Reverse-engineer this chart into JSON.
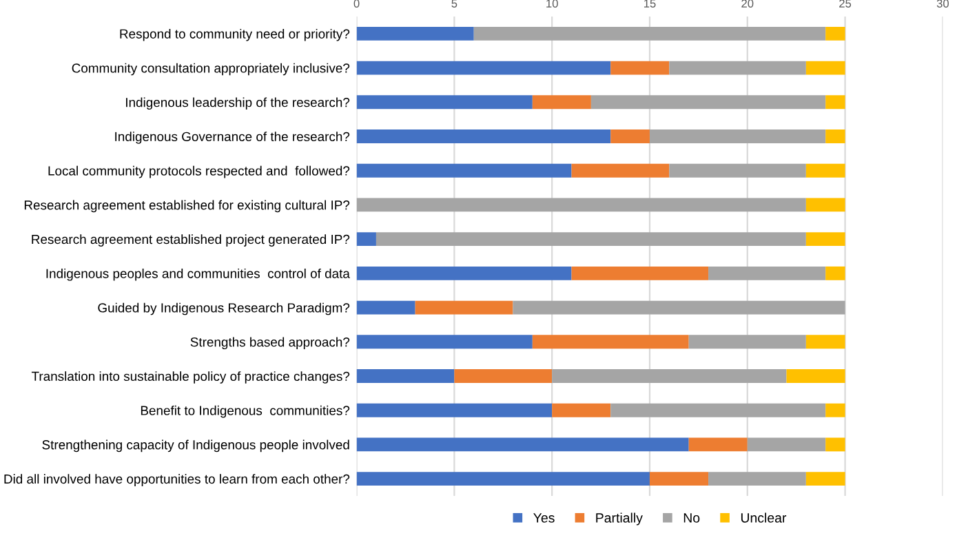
{
  "chart_data": {
    "type": "bar",
    "orientation": "horizontal",
    "stacked": true,
    "categories": [
      "Respond to community need or priority?",
      "Community consultation appropriately inclusive?",
      "Indigenous leadership of the research?",
      "Indigenous Governance of the research?",
      "Local community protocols respected and  followed?",
      "Research agreement established for existing cultural IP?",
      "Research agreement established project generated IP?",
      "Indigenous peoples and communities  control of data",
      "Guided by Indigenous Research Paradigm?",
      "Strengths based approach?",
      "Translation into sustainable policy of practice changes?",
      "Benefit to Indigenous  communities?",
      "Strengthening capacity of Indigenous people involved",
      "Did all involved have opportunities to learn from each other?"
    ],
    "series": [
      {
        "name": "Yes",
        "color": "#4472c4",
        "values": [
          6,
          13,
          9,
          13,
          11,
          0,
          1,
          11,
          3,
          9,
          5,
          10,
          17,
          15
        ]
      },
      {
        "name": "Partially",
        "color": "#ed7d31",
        "values": [
          0,
          3,
          3,
          2,
          5,
          0,
          0,
          7,
          5,
          8,
          5,
          3,
          3,
          3
        ]
      },
      {
        "name": "No",
        "color": "#a5a5a5",
        "values": [
          18,
          7,
          12,
          9,
          7,
          23,
          22,
          6,
          17,
          6,
          12,
          11,
          4,
          5
        ]
      },
      {
        "name": "Unclear",
        "color": "#ffc000",
        "values": [
          1,
          2,
          1,
          1,
          2,
          2,
          2,
          1,
          0,
          2,
          3,
          1,
          1,
          2
        ]
      }
    ],
    "xlim": [
      0,
      30
    ],
    "xticks": [
      0,
      5,
      10,
      15,
      20,
      25,
      30
    ],
    "grid": "x",
    "legend": "bottom"
  }
}
